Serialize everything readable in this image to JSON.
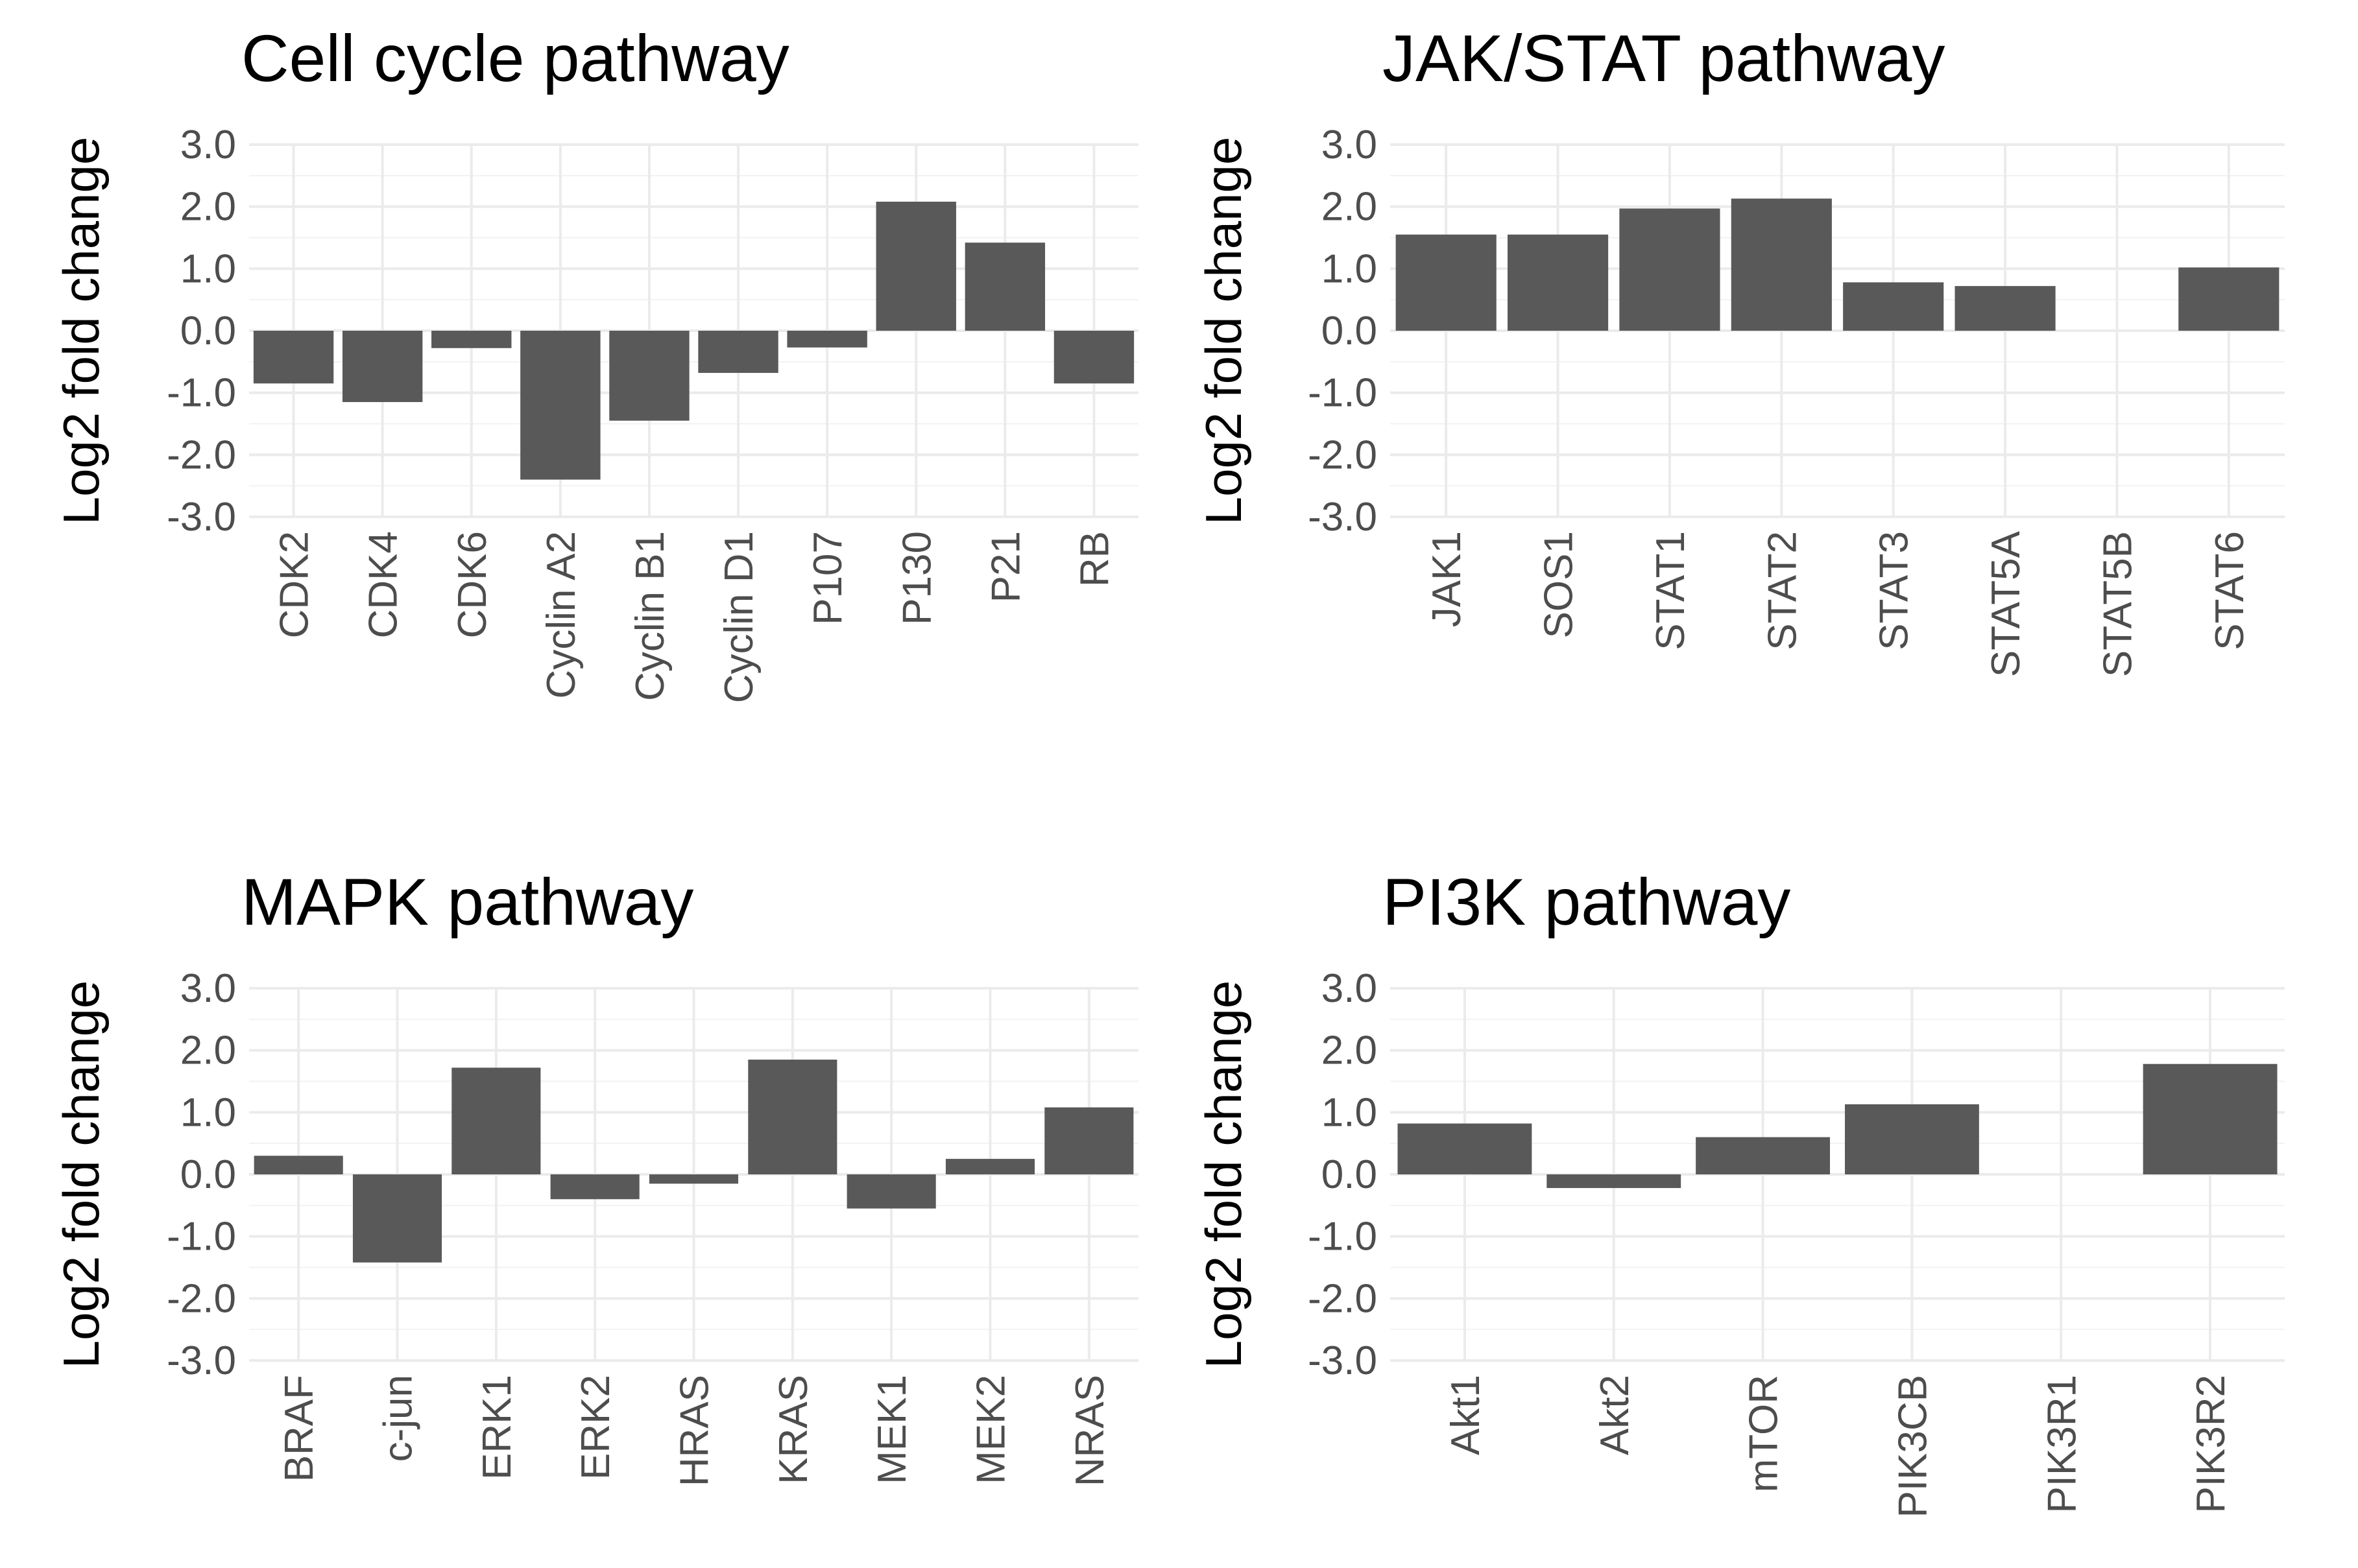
{
  "chart_data": [
    {
      "type": "bar",
      "title": "Cell cycle pathway",
      "ylabel": "Log2 fold change",
      "xlabel": "",
      "ylim": [
        -3.0,
        3.0
      ],
      "yticks": [
        "3.0",
        "2.0",
        "1.0",
        "0.0",
        "-1.0",
        "-2.0",
        "-3.0"
      ],
      "categories": [
        "CDK2",
        "CDK4",
        "CDK6",
        "Cyclin A2",
        "Cyclin B1",
        "Cyclin D1",
        "P107",
        "P130",
        "P21",
        "RB"
      ],
      "values": [
        -0.85,
        -1.15,
        -0.28,
        -2.4,
        -1.45,
        -0.68,
        -0.27,
        2.08,
        1.42,
        -0.85
      ]
    },
    {
      "type": "bar",
      "title": "JAK/STAT pathway",
      "ylabel": "Log2 fold change",
      "xlabel": "",
      "ylim": [
        -3.0,
        3.0
      ],
      "yticks": [
        "3.0",
        "2.0",
        "1.0",
        "0.0",
        "-1.0",
        "-2.0",
        "-3.0"
      ],
      "categories": [
        "JAK1",
        "SOS1",
        "STAT1",
        "STAT2",
        "STAT3",
        "STAT5A",
        "STAT5B",
        "STAT6"
      ],
      "values": [
        1.55,
        1.55,
        1.97,
        2.13,
        0.78,
        0.72,
        0.0,
        1.02
      ]
    },
    {
      "type": "bar",
      "title": "MAPK pathway",
      "ylabel": "Log2 fold change",
      "xlabel": "",
      "ylim": [
        -3.0,
        3.0
      ],
      "yticks": [
        "3.0",
        "2.0",
        "1.0",
        "0.0",
        "-1.0",
        "-2.0",
        "-3.0"
      ],
      "categories": [
        "BRAF",
        "c-jun",
        "ERK1",
        "ERK2",
        "HRAS",
        "KRAS",
        "MEK1",
        "MEK2",
        "NRAS"
      ],
      "values": [
        0.3,
        -1.42,
        1.72,
        -0.4,
        -0.15,
        1.85,
        -0.55,
        0.25,
        1.08
      ]
    },
    {
      "type": "bar",
      "title": "PI3K pathway",
      "ylabel": "Log2 fold change",
      "xlabel": "",
      "ylim": [
        -3.0,
        3.0
      ],
      "yticks": [
        "3.0",
        "2.0",
        "1.0",
        "0.0",
        "-1.0",
        "-2.0",
        "-3.0"
      ],
      "categories": [
        "Akt1",
        "Akt2",
        "mTOR",
        "PIK3CB",
        "PIK3R1",
        "PIK3R2"
      ],
      "values": [
        0.82,
        -0.22,
        0.6,
        1.13,
        0.0,
        1.78
      ]
    }
  ],
  "colors": {
    "bar": "#595959",
    "grid_major": "#ebebeb",
    "grid_minor": "#f2f2f2",
    "tick_text": "#4d4d4d",
    "title_text": "#000000"
  }
}
